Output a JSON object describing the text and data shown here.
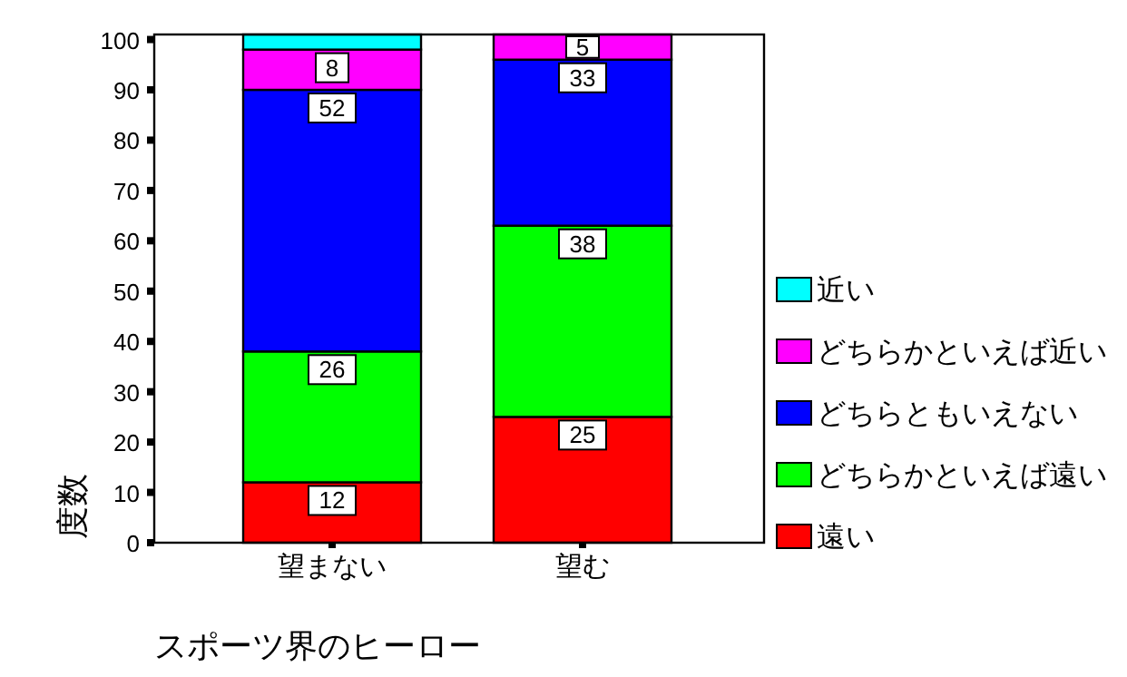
{
  "chart_data": {
    "type": "bar",
    "stacked": true,
    "xlabel": "スポーツ界のヒーロー",
    "ylabel": "度数",
    "categories": [
      "望まない",
      "望む"
    ],
    "series": [
      {
        "name": "遠い",
        "color": "#ff0000",
        "values": [
          12,
          25
        ],
        "value_labels": [
          "12",
          "25"
        ]
      },
      {
        "name": "どちらかといえば遠い",
        "color": "#00ff00",
        "values": [
          26,
          38
        ],
        "value_labels": [
          "26",
          "38"
        ]
      },
      {
        "name": "どちらともいえない",
        "color": "#0000ff",
        "values": [
          52,
          33
        ],
        "value_labels": [
          "52",
          "33"
        ]
      },
      {
        "name": "どちらかといえば近い",
        "color": "#ff00ff",
        "values": [
          8,
          5
        ],
        "value_labels": [
          "8",
          "5"
        ]
      },
      {
        "name": "近い",
        "color": "#00ffff",
        "values": [
          3,
          0
        ],
        "value_labels": [
          null,
          null
        ]
      }
    ],
    "ylim": [
      0,
      101
    ],
    "yticks": [
      0,
      10,
      20,
      30,
      40,
      50,
      60,
      70,
      80,
      90,
      100
    ],
    "grid": false,
    "legend": "right"
  }
}
